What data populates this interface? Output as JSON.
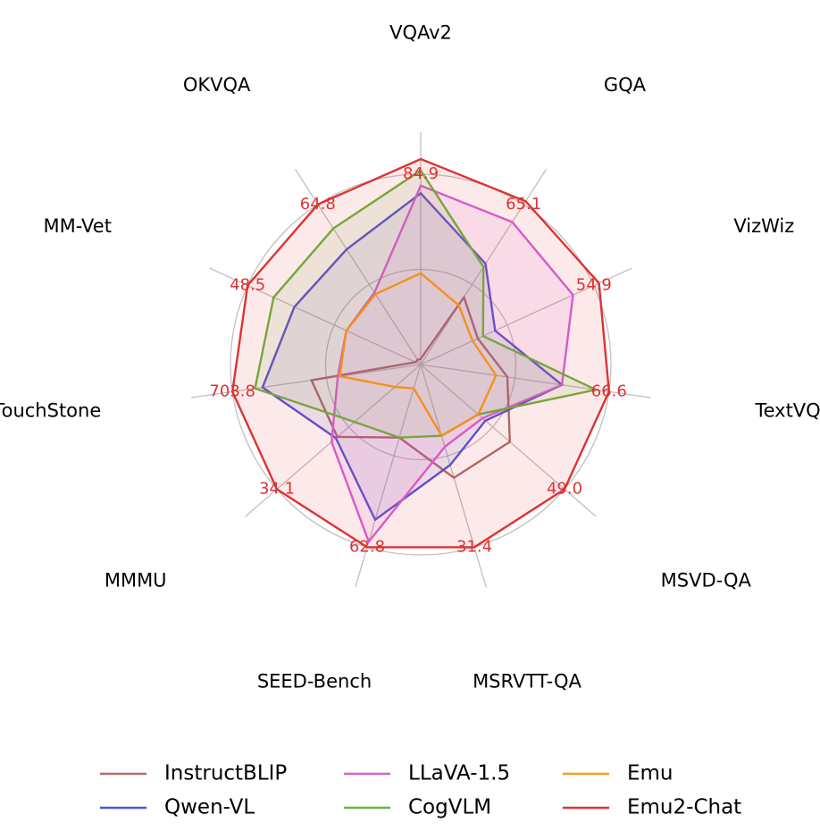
{
  "chart_data": {
    "type": "radar",
    "axes": [
      "VQAv2",
      "GQA",
      "VizWiz",
      "TextVQA",
      "MSVD-QA",
      "MSRVTT-QA",
      "SEED-Bench",
      "MMMU",
      "TouchStone",
      "MM-Vet",
      "OKVQA"
    ],
    "value_labels": [
      "84.9",
      "65.1",
      "54.9",
      "66.6",
      "49.0",
      "31.4",
      "62.8",
      "34.1",
      "703.8",
      "48.5",
      "64.8"
    ],
    "series": [
      {
        "name": "InstructBLIP",
        "color": "#b06a6a",
        "fill": false,
        "values": [
          0.03,
          0.42,
          0.33,
          0.46,
          0.62,
          0.62,
          0.4,
          0.58,
          0.58,
          0.03,
          0.03
        ]
      },
      {
        "name": "Qwen-VL",
        "color": "#5252d9",
        "fill": true,
        "values": [
          0.9,
          0.63,
          0.43,
          0.75,
          0.45,
          0.55,
          0.85,
          0.59,
          0.84,
          0.73,
          0.72
        ]
      },
      {
        "name": "LLaVA-1.5",
        "color": "#d95ed9",
        "fill": true,
        "values": [
          0.94,
          0.89,
          0.88,
          0.75,
          0.43,
          0.45,
          0.97,
          0.62,
          0.44,
          0.43,
          0.45
        ]
      },
      {
        "name": "CogVLM",
        "color": "#6db33f",
        "fill": true,
        "values": [
          1.02,
          0.61,
          0.36,
          0.93,
          0.4,
          0.39,
          0.4,
          0.46,
          0.88,
          0.85,
          0.85
        ]
      },
      {
        "name": "Emu",
        "color": "#f59c1a",
        "fill": false,
        "values": [
          0.48,
          0.37,
          0.3,
          0.4,
          0.4,
          0.39,
          0.13,
          0.18,
          0.43,
          0.43,
          0.44
        ]
      },
      {
        "name": "Emu2-Chat",
        "color": "#dd3333",
        "fill": true,
        "values": [
          1.08,
          1.02,
          1.03,
          1.0,
          1.0,
          1.0,
          1.0,
          1.0,
          1.0,
          1.0,
          1.0
        ]
      }
    ],
    "grid_rings": [
      0.5,
      1.0
    ],
    "radial_max": 1.22,
    "legend_placement": "bottom"
  }
}
